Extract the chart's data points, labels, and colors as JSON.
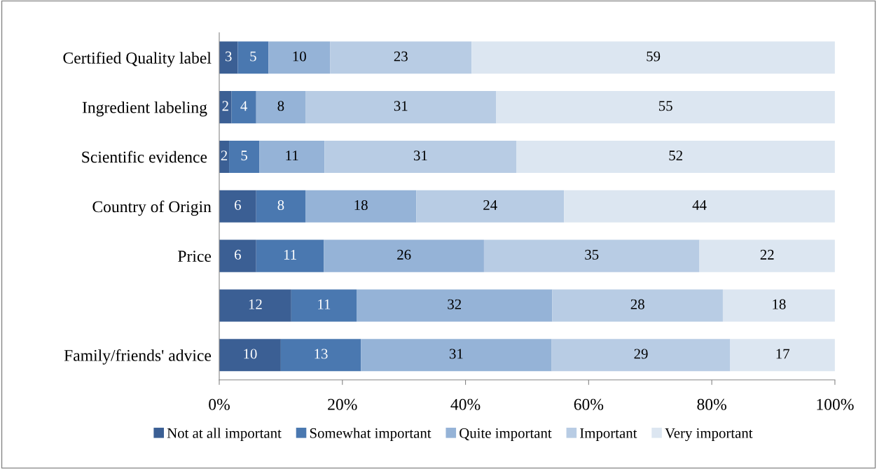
{
  "chart_data": {
    "type": "bar",
    "orientation": "horizontal",
    "stacked": true,
    "categories": [
      "Certified Quality label",
      "Ingredient labeling ",
      "Scientific evidence ",
      "Country of Origin",
      "Price",
      null,
      "Family/friends' advice"
    ],
    "series": [
      {
        "name": "Not at all important",
        "color": "#3b5f94",
        "values": [
          3,
          2,
          1.6,
          6,
          6,
          11.7,
          10
        ],
        "value_labels": [
          "3",
          "2",
          "2",
          "6",
          "6",
          "12",
          "10"
        ]
      },
      {
        "name": "Somewhat important",
        "color": "#4a78b0",
        "values": [
          5,
          4,
          4.9,
          8,
          11,
          10.6,
          13
        ],
        "value_labels": [
          "5",
          "4",
          "5",
          "8",
          "11",
          "11",
          "13"
        ]
      },
      {
        "name": "Quite important",
        "color": "#95b3d7",
        "values": [
          10,
          8,
          10.6,
          18,
          26,
          31.8,
          31
        ],
        "value_labels": [
          "10",
          "8",
          "11",
          "18",
          "26",
          "32",
          "31"
        ]
      },
      {
        "name": "Important",
        "color": "#b8cce4",
        "values": [
          23,
          31,
          31.2,
          24,
          35,
          27.7,
          29
        ],
        "value_labels": [
          "23",
          "31",
          "31",
          "24",
          "35",
          "28",
          "29"
        ]
      },
      {
        "name": "Very important",
        "color": "#dce6f1",
        "values": [
          59,
          55,
          51.7,
          44,
          22,
          18.2,
          17
        ],
        "value_labels": [
          "59",
          "55",
          "52",
          "44",
          "22",
          "18",
          "17"
        ]
      }
    ],
    "xlim": [
      0,
      100
    ],
    "xticks": [
      {
        "value": 0,
        "label": "0%"
      },
      {
        "value": 20,
        "label": "20%"
      },
      {
        "value": 40,
        "label": "40%"
      },
      {
        "value": 60,
        "label": "60%"
      },
      {
        "value": 80,
        "label": "80%"
      },
      {
        "value": 100,
        "label": "100%"
      }
    ],
    "grid": false,
    "legend": "bottom"
  }
}
